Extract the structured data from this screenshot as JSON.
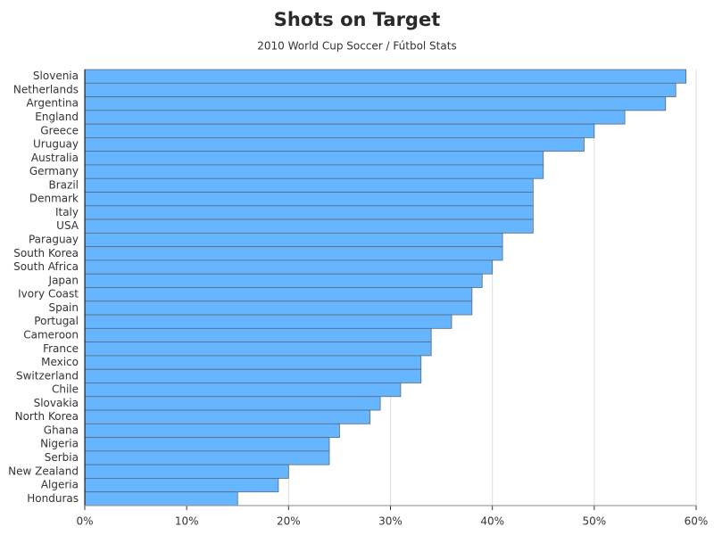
{
  "chart_data": {
    "type": "barh",
    "title": "Shots on Target",
    "subtitle": "2010 World Cup Soccer / Fútbol Stats",
    "categories": [
      "Slovenia",
      "Netherlands",
      "Argentina",
      "England",
      "Greece",
      "Uruguay",
      "Australia",
      "Germany",
      "Brazil",
      "Denmark",
      "Italy",
      "USA",
      "Paraguay",
      "South Korea",
      "South Africa",
      "Japan",
      "Ivory Coast",
      "Spain",
      "Portugal",
      "Cameroon",
      "France",
      "Mexico",
      "Switzerland",
      "Chile",
      "Slovakia",
      "North Korea",
      "Ghana",
      "Nigeria",
      "Serbia",
      "New Zealand",
      "Algeria",
      "Honduras"
    ],
    "values": [
      59,
      58,
      57,
      53,
      50,
      49,
      45,
      45,
      44,
      44,
      44,
      44,
      41,
      41,
      40,
      39,
      38,
      38,
      36,
      34,
      34,
      33,
      33,
      31,
      29,
      28,
      25,
      24,
      24,
      20,
      19,
      15
    ],
    "color": "#66b5ff",
    "xlim": [
      0,
      60
    ],
    "xticks": [
      {
        "value": 0,
        "label": "0%"
      },
      {
        "value": 10,
        "label": "10%"
      },
      {
        "value": 20,
        "label": "20%"
      },
      {
        "value": 30,
        "label": "30%"
      },
      {
        "value": 40,
        "label": "40%"
      },
      {
        "value": 50,
        "label": "50%"
      },
      {
        "value": 60,
        "label": "60%"
      }
    ],
    "grid": true
  }
}
